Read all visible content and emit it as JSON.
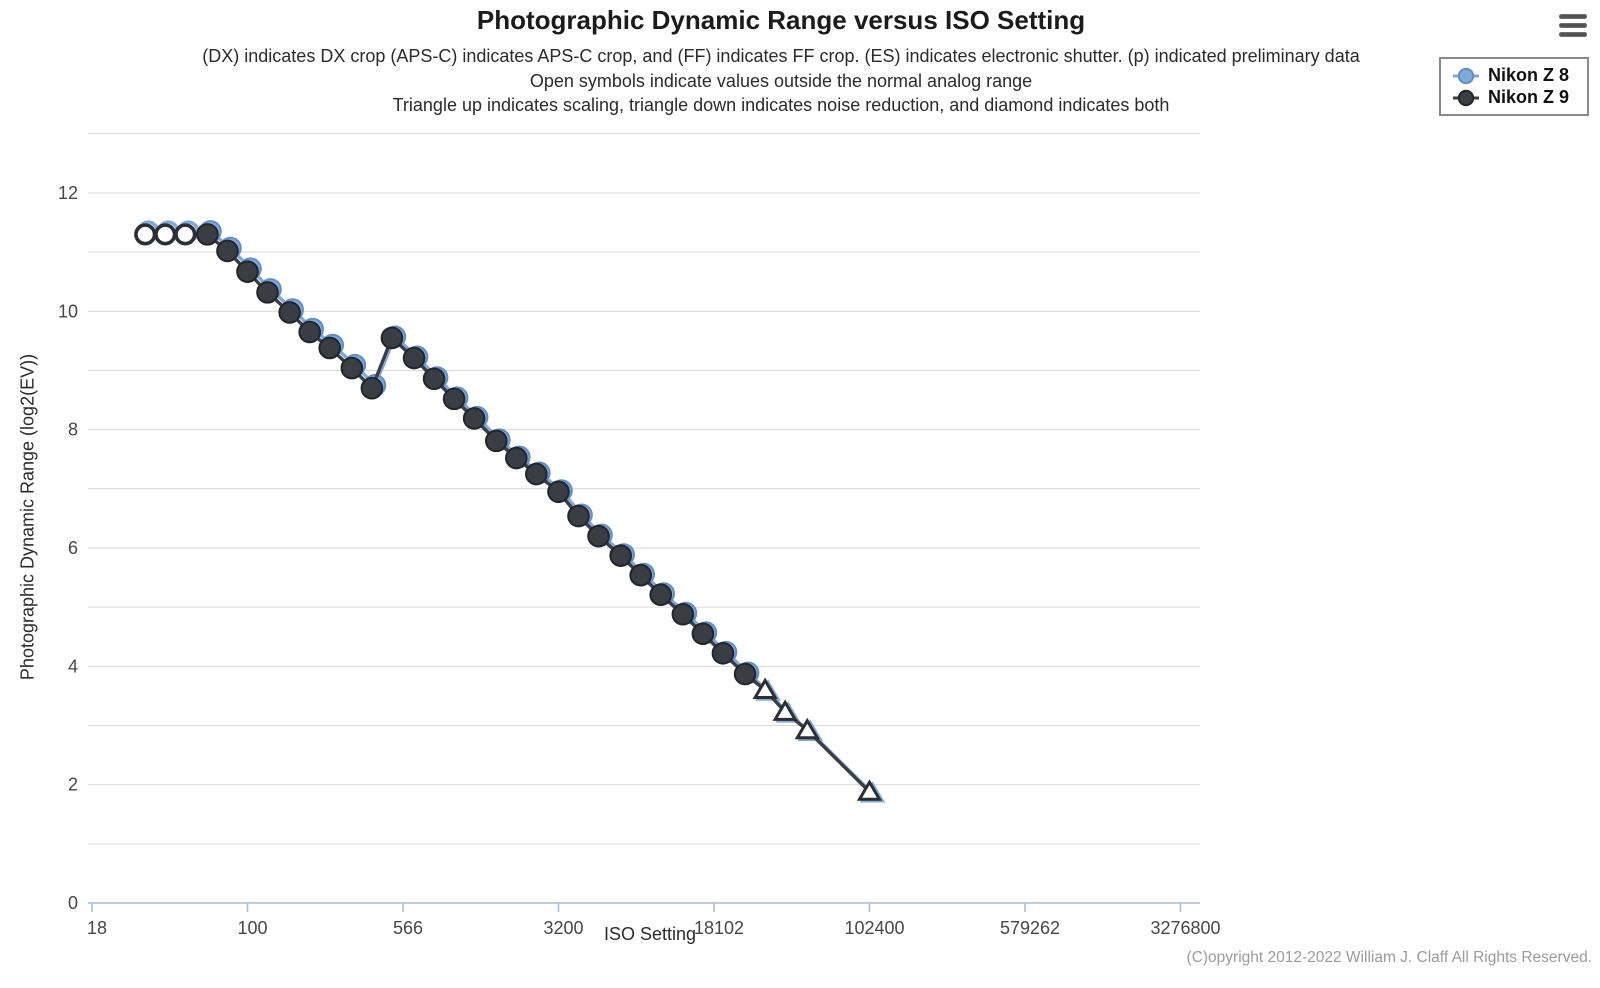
{
  "header": {
    "title": "Photographic Dynamic Range versus ISO Setting",
    "subtitle_lines": [
      "(DX) indicates DX crop (APS-C) indicates APS-C crop, and (FF) indicates FF crop. (ES) indicates electronic shutter. (p) indicated preliminary data",
      "Open symbols indicate values outside the normal analog range",
      "Triangle up indicates scaling, triangle down indicates noise reduction, and diamond indicates both"
    ]
  },
  "legend": {
    "items": [
      {
        "label": "Nikon Z 8",
        "color": "#7fa9dc",
        "edge_color": "#5f8ec8"
      },
      {
        "label": "Nikon Z 9",
        "color": "#3a3d44",
        "edge_color": "#22252a"
      }
    ]
  },
  "footer": {
    "copyright": "(C)opyright 2012-2022 William J. Claff All Rights Reserved."
  },
  "colors": {
    "gridline": "#d9d9d9",
    "axis": "#a9bed6",
    "tick_text": "#474747"
  },
  "chart_data": {
    "type": "line",
    "title": "Photographic Dynamic Range versus ISO Setting",
    "xlabel": "ISO Setting",
    "ylabel": "Photographic Dynamic Range (log2(EV))",
    "x_scale": "log",
    "x_ticks": [
      "18",
      "100",
      "566",
      "3200",
      "18102",
      "102400",
      "579262",
      "3276800"
    ],
    "x_tick_values": [
      17.68,
      100,
      565.7,
      3200,
      18102,
      102400,
      579262,
      3276800
    ],
    "y_ticks": [
      0,
      2,
      4,
      6,
      8,
      10,
      12
    ],
    "ylim": [
      0,
      13
    ],
    "grid": "horizontal lines every 1 EV from 1 to 13",
    "legend_position": "top-right",
    "symbol_notes": "open-circle = outside normal analog range; triangle-up = scaling applied; filled-circle = normal analog value",
    "series": [
      {
        "name": "Nikon Z 8",
        "color": "#7fa9dc",
        "edge_color": "#5f8ec8",
        "points": [
          {
            "iso": 32,
            "pdr": 11.35,
            "symbol": "open-circle"
          },
          {
            "iso": 40,
            "pdr": 11.35,
            "symbol": "open-circle"
          },
          {
            "iso": 50,
            "pdr": 11.35,
            "symbol": "open-circle"
          },
          {
            "iso": 64,
            "pdr": 11.35,
            "symbol": "filled-circle"
          },
          {
            "iso": 80,
            "pdr": 11.07,
            "symbol": "filled-circle"
          },
          {
            "iso": 100,
            "pdr": 10.72,
            "symbol": "filled-circle"
          },
          {
            "iso": 125,
            "pdr": 10.37,
            "symbol": "filled-circle"
          },
          {
            "iso": 160,
            "pdr": 10.03,
            "symbol": "filled-circle"
          },
          {
            "iso": 200,
            "pdr": 9.7,
            "symbol": "filled-circle"
          },
          {
            "iso": 250,
            "pdr": 9.43,
            "symbol": "filled-circle"
          },
          {
            "iso": 320,
            "pdr": 9.09,
            "symbol": "filled-circle"
          },
          {
            "iso": 400,
            "pdr": 8.75,
            "symbol": "filled-circle"
          },
          {
            "iso": 500,
            "pdr": 9.57,
            "symbol": "filled-circle"
          },
          {
            "iso": 640,
            "pdr": 9.23,
            "symbol": "filled-circle"
          },
          {
            "iso": 800,
            "pdr": 8.88,
            "symbol": "filled-circle"
          },
          {
            "iso": 1000,
            "pdr": 8.54,
            "symbol": "filled-circle"
          },
          {
            "iso": 1250,
            "pdr": 8.21,
            "symbol": "filled-circle"
          },
          {
            "iso": 1600,
            "pdr": 7.83,
            "symbol": "filled-circle"
          },
          {
            "iso": 2000,
            "pdr": 7.54,
            "symbol": "filled-circle"
          },
          {
            "iso": 2500,
            "pdr": 7.27,
            "symbol": "filled-circle"
          },
          {
            "iso": 3200,
            "pdr": 6.97,
            "symbol": "filled-circle"
          },
          {
            "iso": 4000,
            "pdr": 6.56,
            "symbol": "filled-circle"
          },
          {
            "iso": 5000,
            "pdr": 6.22,
            "symbol": "filled-circle"
          },
          {
            "iso": 6400,
            "pdr": 5.89,
            "symbol": "filled-circle"
          },
          {
            "iso": 8000,
            "pdr": 5.56,
            "symbol": "filled-circle"
          },
          {
            "iso": 10000,
            "pdr": 5.23,
            "symbol": "filled-circle"
          },
          {
            "iso": 12800,
            "pdr": 4.9,
            "symbol": "filled-circle"
          },
          {
            "iso": 16000,
            "pdr": 4.57,
            "symbol": "filled-circle"
          },
          {
            "iso": 20000,
            "pdr": 4.24,
            "symbol": "filled-circle"
          },
          {
            "iso": 25600,
            "pdr": 3.89,
            "symbol": "filled-circle"
          },
          {
            "iso": 32000,
            "pdr": 3.57,
            "symbol": "triangle-up"
          },
          {
            "iso": 40000,
            "pdr": 3.2,
            "symbol": "triangle-up"
          },
          {
            "iso": 51200,
            "pdr": 2.89,
            "symbol": "triangle-up"
          },
          {
            "iso": 102400,
            "pdr": 1.85,
            "symbol": "triangle-up"
          }
        ]
      },
      {
        "name": "Nikon Z 9",
        "color": "#3a3d44",
        "edge_color": "#22252a",
        "points": [
          {
            "iso": 32,
            "pdr": 11.3,
            "symbol": "open-circle"
          },
          {
            "iso": 40,
            "pdr": 11.3,
            "symbol": "open-circle"
          },
          {
            "iso": 50,
            "pdr": 11.3,
            "symbol": "open-circle"
          },
          {
            "iso": 64,
            "pdr": 11.3,
            "symbol": "filled-circle"
          },
          {
            "iso": 80,
            "pdr": 11.02,
            "symbol": "filled-circle"
          },
          {
            "iso": 100,
            "pdr": 10.67,
            "symbol": "filled-circle"
          },
          {
            "iso": 125,
            "pdr": 10.32,
            "symbol": "filled-circle"
          },
          {
            "iso": 160,
            "pdr": 9.98,
            "symbol": "filled-circle"
          },
          {
            "iso": 200,
            "pdr": 9.65,
            "symbol": "filled-circle"
          },
          {
            "iso": 250,
            "pdr": 9.38,
            "symbol": "filled-circle"
          },
          {
            "iso": 320,
            "pdr": 9.04,
            "symbol": "filled-circle"
          },
          {
            "iso": 400,
            "pdr": 8.7,
            "symbol": "filled-circle"
          },
          {
            "iso": 500,
            "pdr": 9.55,
            "symbol": "filled-circle"
          },
          {
            "iso": 640,
            "pdr": 9.21,
            "symbol": "filled-circle"
          },
          {
            "iso": 800,
            "pdr": 8.86,
            "symbol": "filled-circle"
          },
          {
            "iso": 1000,
            "pdr": 8.52,
            "symbol": "filled-circle"
          },
          {
            "iso": 1250,
            "pdr": 8.19,
            "symbol": "filled-circle"
          },
          {
            "iso": 1600,
            "pdr": 7.81,
            "symbol": "filled-circle"
          },
          {
            "iso": 2000,
            "pdr": 7.52,
            "symbol": "filled-circle"
          },
          {
            "iso": 2500,
            "pdr": 7.25,
            "symbol": "filled-circle"
          },
          {
            "iso": 3200,
            "pdr": 6.95,
            "symbol": "filled-circle"
          },
          {
            "iso": 4000,
            "pdr": 6.54,
            "symbol": "filled-circle"
          },
          {
            "iso": 5000,
            "pdr": 6.2,
            "symbol": "filled-circle"
          },
          {
            "iso": 6400,
            "pdr": 5.87,
            "symbol": "filled-circle"
          },
          {
            "iso": 8000,
            "pdr": 5.54,
            "symbol": "filled-circle"
          },
          {
            "iso": 10000,
            "pdr": 5.21,
            "symbol": "filled-circle"
          },
          {
            "iso": 12800,
            "pdr": 4.88,
            "symbol": "filled-circle"
          },
          {
            "iso": 16000,
            "pdr": 4.55,
            "symbol": "filled-circle"
          },
          {
            "iso": 20000,
            "pdr": 4.22,
            "symbol": "filled-circle"
          },
          {
            "iso": 25600,
            "pdr": 3.87,
            "symbol": "filled-circle"
          },
          {
            "iso": 32000,
            "pdr": 3.6,
            "symbol": "triangle-up"
          },
          {
            "iso": 40000,
            "pdr": 3.23,
            "symbol": "triangle-up"
          },
          {
            "iso": 51200,
            "pdr": 2.92,
            "symbol": "triangle-up"
          },
          {
            "iso": 102400,
            "pdr": 1.88,
            "symbol": "triangle-up"
          }
        ]
      }
    ]
  }
}
